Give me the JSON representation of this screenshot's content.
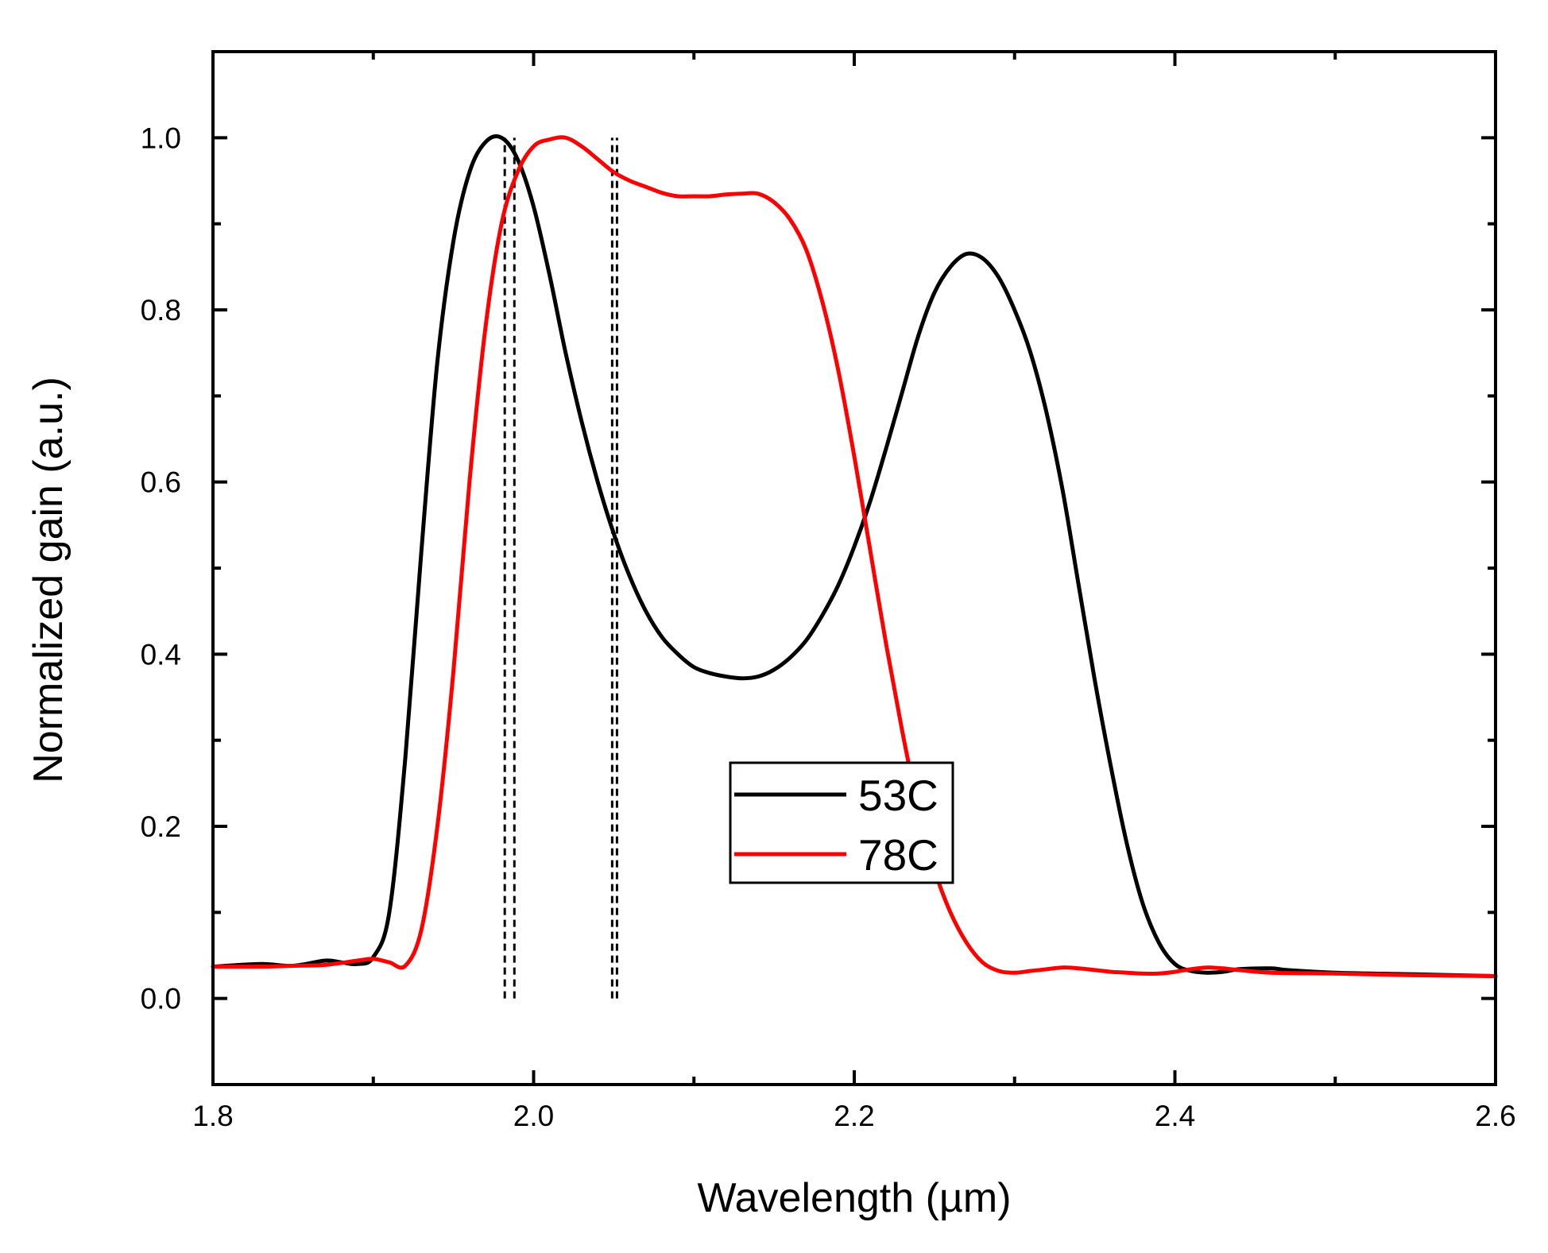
{
  "chart_data": {
    "type": "line",
    "title": "",
    "xlabel": "Wavelength (µm)",
    "ylabel": "Normalized gain (a.u.)",
    "xlim": [
      1.8,
      2.6
    ],
    "ylim": [
      -0.1,
      1.1
    ],
    "xticks": [
      1.8,
      2.0,
      2.2,
      2.4,
      2.6
    ],
    "xtick_labels": [
      "1.8",
      "2.0",
      "2.2",
      "2.4",
      "2.6"
    ],
    "yticks": [
      0.0,
      0.2,
      0.4,
      0.6,
      0.8,
      1.0
    ],
    "ytick_labels": [
      "0.0",
      "0.2",
      "0.4",
      "0.6",
      "0.8",
      "1.0"
    ],
    "legend_position": "center-right",
    "series": [
      {
        "name": "53C",
        "color": "#000000",
        "x": [
          1.8,
          1.83,
          1.85,
          1.87,
          1.88,
          1.89,
          1.9,
          1.91,
          1.92,
          1.93,
          1.94,
          1.95,
          1.96,
          1.97,
          1.98,
          1.99,
          2.0,
          2.01,
          2.02,
          2.03,
          2.04,
          2.05,
          2.06,
          2.07,
          2.08,
          2.09,
          2.1,
          2.11,
          2.12,
          2.13,
          2.14,
          2.15,
          2.16,
          2.17,
          2.18,
          2.19,
          2.2,
          2.21,
          2.22,
          2.23,
          2.24,
          2.25,
          2.26,
          2.27,
          2.28,
          2.29,
          2.3,
          2.31,
          2.32,
          2.33,
          2.34,
          2.35,
          2.36,
          2.37,
          2.38,
          2.39,
          2.4,
          2.41,
          2.42,
          2.43,
          2.44,
          2.46,
          2.47,
          2.5,
          2.55,
          2.6
        ],
        "y": [
          0.037,
          0.04,
          0.038,
          0.044,
          0.042,
          0.04,
          0.048,
          0.1,
          0.28,
          0.52,
          0.74,
          0.88,
          0.96,
          0.995,
          1.0,
          0.975,
          0.92,
          0.84,
          0.75,
          0.67,
          0.6,
          0.54,
          0.49,
          0.45,
          0.42,
          0.4,
          0.385,
          0.378,
          0.374,
          0.372,
          0.374,
          0.382,
          0.396,
          0.416,
          0.445,
          0.48,
          0.525,
          0.578,
          0.64,
          0.705,
          0.77,
          0.82,
          0.85,
          0.865,
          0.86,
          0.838,
          0.8,
          0.75,
          0.68,
          0.59,
          0.48,
          0.37,
          0.27,
          0.18,
          0.11,
          0.065,
          0.04,
          0.032,
          0.03,
          0.031,
          0.034,
          0.035,
          0.033,
          0.03,
          0.028,
          0.026
        ]
      },
      {
        "name": "78C",
        "color": "#ff0000",
        "x": [
          1.8,
          1.83,
          1.85,
          1.87,
          1.89,
          1.9,
          1.91,
          1.92,
          1.93,
          1.94,
          1.95,
          1.96,
          1.97,
          1.98,
          1.99,
          2.0,
          2.01,
          2.02,
          2.03,
          2.04,
          2.05,
          2.06,
          2.07,
          2.08,
          2.09,
          2.1,
          2.11,
          2.12,
          2.13,
          2.14,
          2.15,
          2.16,
          2.17,
          2.18,
          2.19,
          2.2,
          2.21,
          2.22,
          2.23,
          2.24,
          2.25,
          2.26,
          2.27,
          2.28,
          2.29,
          2.3,
          2.31,
          2.32,
          2.33,
          2.34,
          2.35,
          2.36,
          2.37,
          2.38,
          2.39,
          2.4,
          2.41,
          2.42,
          2.43,
          2.44,
          2.46,
          2.5,
          2.55,
          2.6
        ],
        "y": [
          0.037,
          0.037,
          0.038,
          0.039,
          0.044,
          0.046,
          0.042,
          0.038,
          0.08,
          0.2,
          0.38,
          0.6,
          0.78,
          0.9,
          0.96,
          0.99,
          0.998,
          1.0,
          0.99,
          0.975,
          0.96,
          0.95,
          0.943,
          0.936,
          0.932,
          0.932,
          0.932,
          0.934,
          0.935,
          0.935,
          0.925,
          0.905,
          0.87,
          0.81,
          0.73,
          0.63,
          0.52,
          0.41,
          0.31,
          0.22,
          0.15,
          0.1,
          0.065,
          0.042,
          0.032,
          0.03,
          0.032,
          0.034,
          0.036,
          0.035,
          0.033,
          0.031,
          0.03,
          0.029,
          0.029,
          0.031,
          0.034,
          0.036,
          0.035,
          0.033,
          0.03,
          0.029,
          0.027,
          0.026
        ]
      }
    ],
    "annotations": [
      {
        "type": "vline",
        "style": "dashed",
        "color": "#000000",
        "x": 1.982,
        "y_range": [
          0.0,
          1.0
        ]
      },
      {
        "type": "vline",
        "style": "dashed",
        "color": "#000000",
        "x": 1.988,
        "y_range": [
          0.0,
          1.0
        ]
      },
      {
        "type": "vline",
        "style": "dashed",
        "color": "#000000",
        "x": 2.049,
        "y_range": [
          0.0,
          1.0
        ]
      },
      {
        "type": "vline",
        "style": "dashed",
        "color": "#000000",
        "x": 2.052,
        "y_range": [
          0.0,
          1.0
        ]
      }
    ]
  }
}
